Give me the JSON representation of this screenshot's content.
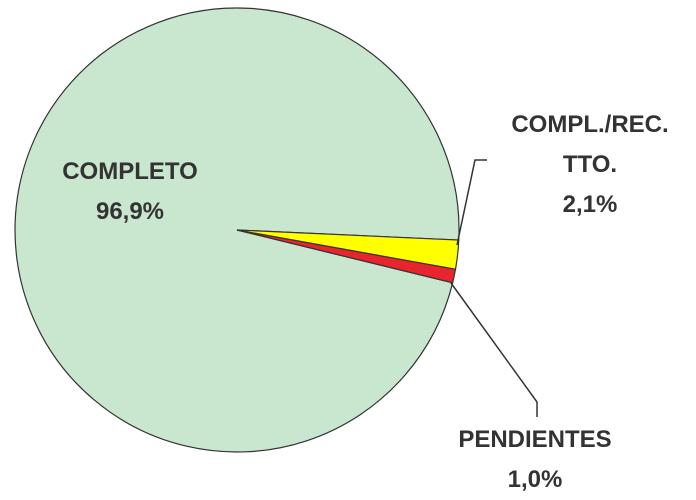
{
  "chart_data": {
    "type": "pie",
    "categories": [
      "COMPLETO",
      "COMPL./REC. TTO.",
      "PENDIENTES"
    ],
    "values": [
      96.9,
      2.1,
      1.0
    ],
    "value_labels": [
      "96,9%",
      "2,1%",
      "1,0%"
    ],
    "colors": [
      "#c9e6cf",
      "#ffff00",
      "#e8242c"
    ]
  }
}
